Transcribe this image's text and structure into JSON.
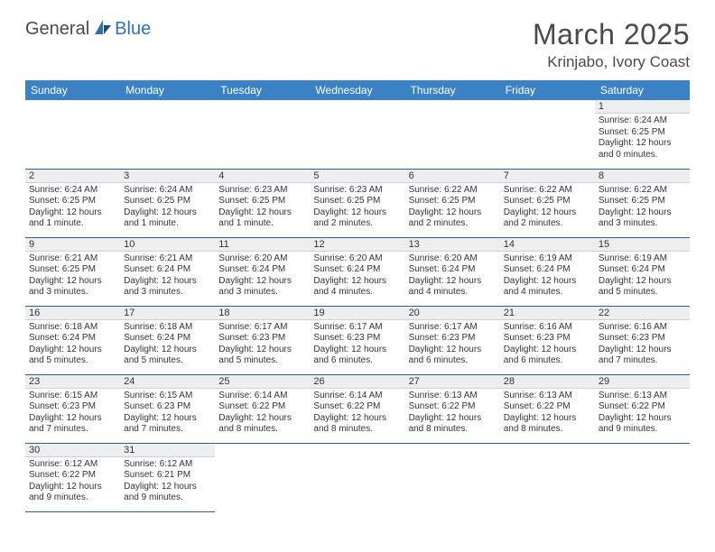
{
  "logo": {
    "general": "General",
    "blue": "Blue"
  },
  "title": "March 2025",
  "location": "Krinjabo, Ivory Coast",
  "colors": {
    "header_bg": "#3b82c4",
    "header_text": "#ffffff",
    "row_border": "#2d5f95",
    "daynum_bg": "#eceeef",
    "logo_blue": "#2d72b8",
    "text": "#333333"
  },
  "day_headers": [
    "Sunday",
    "Monday",
    "Tuesday",
    "Wednesday",
    "Thursday",
    "Friday",
    "Saturday"
  ],
  "weeks": [
    [
      {
        "n": "",
        "sr": "",
        "ss": "",
        "dl": ""
      },
      {
        "n": "",
        "sr": "",
        "ss": "",
        "dl": ""
      },
      {
        "n": "",
        "sr": "",
        "ss": "",
        "dl": ""
      },
      {
        "n": "",
        "sr": "",
        "ss": "",
        "dl": ""
      },
      {
        "n": "",
        "sr": "",
        "ss": "",
        "dl": ""
      },
      {
        "n": "",
        "sr": "",
        "ss": "",
        "dl": ""
      },
      {
        "n": "1",
        "sr": "Sunrise: 6:24 AM",
        "ss": "Sunset: 6:25 PM",
        "dl": "Daylight: 12 hours and 0 minutes."
      }
    ],
    [
      {
        "n": "2",
        "sr": "Sunrise: 6:24 AM",
        "ss": "Sunset: 6:25 PM",
        "dl": "Daylight: 12 hours and 1 minute."
      },
      {
        "n": "3",
        "sr": "Sunrise: 6:24 AM",
        "ss": "Sunset: 6:25 PM",
        "dl": "Daylight: 12 hours and 1 minute."
      },
      {
        "n": "4",
        "sr": "Sunrise: 6:23 AM",
        "ss": "Sunset: 6:25 PM",
        "dl": "Daylight: 12 hours and 1 minute."
      },
      {
        "n": "5",
        "sr": "Sunrise: 6:23 AM",
        "ss": "Sunset: 6:25 PM",
        "dl": "Daylight: 12 hours and 2 minutes."
      },
      {
        "n": "6",
        "sr": "Sunrise: 6:22 AM",
        "ss": "Sunset: 6:25 PM",
        "dl": "Daylight: 12 hours and 2 minutes."
      },
      {
        "n": "7",
        "sr": "Sunrise: 6:22 AM",
        "ss": "Sunset: 6:25 PM",
        "dl": "Daylight: 12 hours and 2 minutes."
      },
      {
        "n": "8",
        "sr": "Sunrise: 6:22 AM",
        "ss": "Sunset: 6:25 PM",
        "dl": "Daylight: 12 hours and 3 minutes."
      }
    ],
    [
      {
        "n": "9",
        "sr": "Sunrise: 6:21 AM",
        "ss": "Sunset: 6:25 PM",
        "dl": "Daylight: 12 hours and 3 minutes."
      },
      {
        "n": "10",
        "sr": "Sunrise: 6:21 AM",
        "ss": "Sunset: 6:24 PM",
        "dl": "Daylight: 12 hours and 3 minutes."
      },
      {
        "n": "11",
        "sr": "Sunrise: 6:20 AM",
        "ss": "Sunset: 6:24 PM",
        "dl": "Daylight: 12 hours and 3 minutes."
      },
      {
        "n": "12",
        "sr": "Sunrise: 6:20 AM",
        "ss": "Sunset: 6:24 PM",
        "dl": "Daylight: 12 hours and 4 minutes."
      },
      {
        "n": "13",
        "sr": "Sunrise: 6:20 AM",
        "ss": "Sunset: 6:24 PM",
        "dl": "Daylight: 12 hours and 4 minutes."
      },
      {
        "n": "14",
        "sr": "Sunrise: 6:19 AM",
        "ss": "Sunset: 6:24 PM",
        "dl": "Daylight: 12 hours and 4 minutes."
      },
      {
        "n": "15",
        "sr": "Sunrise: 6:19 AM",
        "ss": "Sunset: 6:24 PM",
        "dl": "Daylight: 12 hours and 5 minutes."
      }
    ],
    [
      {
        "n": "16",
        "sr": "Sunrise: 6:18 AM",
        "ss": "Sunset: 6:24 PM",
        "dl": "Daylight: 12 hours and 5 minutes."
      },
      {
        "n": "17",
        "sr": "Sunrise: 6:18 AM",
        "ss": "Sunset: 6:24 PM",
        "dl": "Daylight: 12 hours and 5 minutes."
      },
      {
        "n": "18",
        "sr": "Sunrise: 6:17 AM",
        "ss": "Sunset: 6:23 PM",
        "dl": "Daylight: 12 hours and 5 minutes."
      },
      {
        "n": "19",
        "sr": "Sunrise: 6:17 AM",
        "ss": "Sunset: 6:23 PM",
        "dl": "Daylight: 12 hours and 6 minutes."
      },
      {
        "n": "20",
        "sr": "Sunrise: 6:17 AM",
        "ss": "Sunset: 6:23 PM",
        "dl": "Daylight: 12 hours and 6 minutes."
      },
      {
        "n": "21",
        "sr": "Sunrise: 6:16 AM",
        "ss": "Sunset: 6:23 PM",
        "dl": "Daylight: 12 hours and 6 minutes."
      },
      {
        "n": "22",
        "sr": "Sunrise: 6:16 AM",
        "ss": "Sunset: 6:23 PM",
        "dl": "Daylight: 12 hours and 7 minutes."
      }
    ],
    [
      {
        "n": "23",
        "sr": "Sunrise: 6:15 AM",
        "ss": "Sunset: 6:23 PM",
        "dl": "Daylight: 12 hours and 7 minutes."
      },
      {
        "n": "24",
        "sr": "Sunrise: 6:15 AM",
        "ss": "Sunset: 6:23 PM",
        "dl": "Daylight: 12 hours and 7 minutes."
      },
      {
        "n": "25",
        "sr": "Sunrise: 6:14 AM",
        "ss": "Sunset: 6:22 PM",
        "dl": "Daylight: 12 hours and 8 minutes."
      },
      {
        "n": "26",
        "sr": "Sunrise: 6:14 AM",
        "ss": "Sunset: 6:22 PM",
        "dl": "Daylight: 12 hours and 8 minutes."
      },
      {
        "n": "27",
        "sr": "Sunrise: 6:13 AM",
        "ss": "Sunset: 6:22 PM",
        "dl": "Daylight: 12 hours and 8 minutes."
      },
      {
        "n": "28",
        "sr": "Sunrise: 6:13 AM",
        "ss": "Sunset: 6:22 PM",
        "dl": "Daylight: 12 hours and 8 minutes."
      },
      {
        "n": "29",
        "sr": "Sunrise: 6:13 AM",
        "ss": "Sunset: 6:22 PM",
        "dl": "Daylight: 12 hours and 9 minutes."
      }
    ],
    [
      {
        "n": "30",
        "sr": "Sunrise: 6:12 AM",
        "ss": "Sunset: 6:22 PM",
        "dl": "Daylight: 12 hours and 9 minutes."
      },
      {
        "n": "31",
        "sr": "Sunrise: 6:12 AM",
        "ss": "Sunset: 6:21 PM",
        "dl": "Daylight: 12 hours and 9 minutes."
      },
      {
        "n": "",
        "sr": "",
        "ss": "",
        "dl": ""
      },
      {
        "n": "",
        "sr": "",
        "ss": "",
        "dl": ""
      },
      {
        "n": "",
        "sr": "",
        "ss": "",
        "dl": ""
      },
      {
        "n": "",
        "sr": "",
        "ss": "",
        "dl": ""
      },
      {
        "n": "",
        "sr": "",
        "ss": "",
        "dl": ""
      }
    ]
  ]
}
